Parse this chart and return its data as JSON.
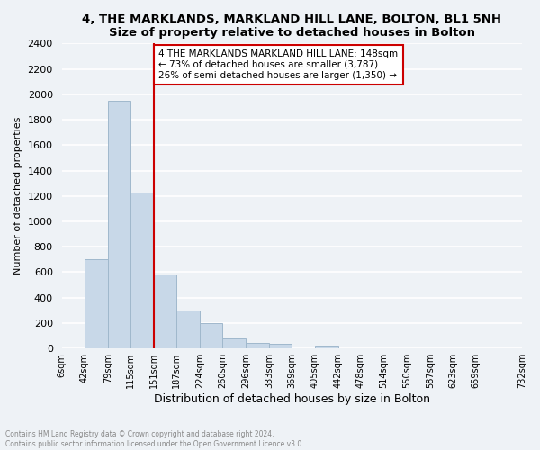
{
  "title": "4, THE MARKLANDS, MARKLAND HILL LANE, BOLTON, BL1 5NH",
  "subtitle": "Size of property relative to detached houses in Bolton",
  "xlabel": "Distribution of detached houses by size in Bolton",
  "ylabel": "Number of detached properties",
  "bar_color": "#c8d8e8",
  "bar_edge_color": "#a0b8cc",
  "bar_heights": [
    0,
    700,
    1950,
    1230,
    580,
    300,
    200,
    80,
    45,
    35,
    0,
    20,
    5,
    5,
    3,
    2,
    1,
    0,
    0
  ],
  "bin_edges": [
    6,
    42,
    79,
    115,
    151,
    187,
    224,
    260,
    296,
    333,
    369,
    405,
    442,
    478,
    514,
    550,
    587,
    623,
    659,
    732
  ],
  "tick_labels": [
    "6sqm",
    "42sqm",
    "79sqm",
    "115sqm",
    "151sqm",
    "187sqm",
    "224sqm",
    "260sqm",
    "296sqm",
    "333sqm",
    "369sqm",
    "405sqm",
    "442sqm",
    "478sqm",
    "514sqm",
    "550sqm",
    "587sqm",
    "623sqm",
    "659sqm",
    "732sqm"
  ],
  "vline_x": 151,
  "vline_color": "#cc0000",
  "ylim": [
    0,
    2400
  ],
  "yticks": [
    0,
    200,
    400,
    600,
    800,
    1000,
    1200,
    1400,
    1600,
    1800,
    2000,
    2200,
    2400
  ],
  "annotation_title": "4 THE MARKLANDS MARKLAND HILL LANE: 148sqm",
  "annotation_line1": "← 73% of detached houses are smaller (3,787)",
  "annotation_line2": "26% of semi-detached houses are larger (1,350) →",
  "annotation_box_color": "#ffffff",
  "annotation_box_edge": "#cc0000",
  "footer_line1": "Contains HM Land Registry data © Crown copyright and database right 2024.",
  "footer_line2": "Contains public sector information licensed under the Open Government Licence v3.0.",
  "background_color": "#eef2f6",
  "plot_background": "#eef2f6"
}
